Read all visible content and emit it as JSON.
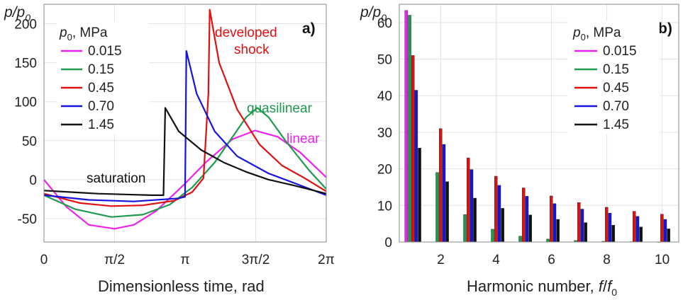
{
  "colors": {
    "0.015": "#ee22ee",
    "0.15": "#1e9a4e",
    "0.45": "#e01010",
    "0.70": "#1515dd",
    "1.45": "#111111"
  },
  "chart_data": [
    {
      "type": "line",
      "panel_label": "a)",
      "ylabel_html": "p/p0",
      "xlabel": "Dimensionless time, rad",
      "x_unit": "rad",
      "xlim": [
        0,
        6.2832
      ],
      "ylim": [
        -80,
        225
      ],
      "yticks": [
        -50,
        0,
        50,
        100,
        150,
        200
      ],
      "xtick_labels": [
        "0",
        "π/2",
        "π",
        "3π/2",
        "2π"
      ],
      "xtick_values": [
        0,
        1.5708,
        3.1416,
        4.7124,
        6.2832
      ],
      "legend_title": "p0, MPa",
      "legend_position": "top-left",
      "annotations": [
        {
          "text": "developed",
          "color": "#e01010"
        },
        {
          "text": "shock",
          "color": "#e01010"
        },
        {
          "text": "quasilinear",
          "color": "#1e9a4e"
        },
        {
          "text": "linear",
          "color": "#ee22ee"
        },
        {
          "text": "saturation",
          "color": "#111111"
        }
      ],
      "series": [
        {
          "name": "0.015",
          "color": "#ee22ee",
          "x": [
            0,
            0.5,
            1.0,
            1.5708,
            2.0,
            2.5,
            3.1416,
            3.6,
            4.2,
            4.7,
            5.2,
            5.7,
            6.2832
          ],
          "y": [
            0,
            -35,
            -58,
            -63,
            -58,
            -40,
            -5,
            22,
            52,
            63,
            55,
            35,
            3
          ]
        },
        {
          "name": "0.15",
          "color": "#1e9a4e",
          "x": [
            0,
            0.7,
            1.5,
            2.2,
            2.8,
            3.3,
            3.8,
            4.2,
            4.5,
            4.75,
            5.0,
            5.4,
            5.9,
            6.2832
          ],
          "y": [
            -20,
            -38,
            -48,
            -45,
            -32,
            -10,
            22,
            55,
            80,
            92,
            80,
            48,
            12,
            -12
          ]
        },
        {
          "name": "0.45",
          "color": "#e01010",
          "x": [
            0,
            0.8,
            1.5,
            2.2,
            2.9,
            3.3,
            3.55,
            3.66,
            3.69,
            3.9,
            4.3,
            4.8,
            5.3,
            5.8,
            6.2832
          ],
          "y": [
            -18,
            -30,
            -34,
            -33,
            -27,
            -16,
            2,
            110,
            218,
            150,
            90,
            45,
            18,
            2,
            -15
          ]
        },
        {
          "name": "0.70",
          "color": "#1515dd",
          "x": [
            0,
            1.0,
            2.0,
            3.0,
            3.14,
            3.17,
            3.4,
            3.8,
            4.3,
            5.0,
            5.6,
            6.2832
          ],
          "y": [
            -20,
            -26,
            -28,
            -24,
            -22,
            165,
            110,
            62,
            30,
            8,
            -5,
            -20
          ]
        },
        {
          "name": "1.45",
          "color": "#111111",
          "x": [
            0,
            0.6,
            1.2,
            1.8,
            2.4,
            2.66,
            2.7,
            3.0,
            3.5,
            4.0,
            4.5,
            5.0,
            5.6,
            6.2832
          ],
          "y": [
            -14,
            -16,
            -18,
            -19,
            -20,
            -20,
            92,
            62,
            38,
            22,
            10,
            0,
            -8,
            -18
          ]
        }
      ]
    },
    {
      "type": "bar",
      "panel_label": "b)",
      "ylabel_html": "p/p0",
      "xlabel": "Harmonic number, f/f0",
      "ylim": [
        0,
        65
      ],
      "yticks": [
        0,
        10,
        20,
        30,
        40,
        50,
        60
      ],
      "xticks": [
        2,
        4,
        6,
        8,
        10
      ],
      "categories": [
        1,
        2,
        3,
        4,
        5,
        6,
        7,
        8,
        9,
        10
      ],
      "legend_title": "p0, MPa",
      "legend_position": "top-right",
      "series": [
        {
          "name": "0.015",
          "color": "#ee22ee",
          "values": [
            63.3,
            0,
            0,
            0,
            0,
            0,
            0,
            0,
            0,
            0
          ]
        },
        {
          "name": "0.15",
          "color": "#1e9a4e",
          "values": [
            62,
            19,
            7.5,
            3.5,
            1.6,
            0.8,
            0.4,
            0.2,
            0.1,
            0.05
          ]
        },
        {
          "name": "0.45",
          "color": "#e01010",
          "values": [
            51,
            31,
            23,
            18,
            14.8,
            12.6,
            10.8,
            9.5,
            8.4,
            7.6
          ]
        },
        {
          "name": "0.70",
          "color": "#1515dd",
          "values": [
            41.5,
            26.7,
            19.8,
            15.5,
            12.5,
            10.5,
            9,
            7.9,
            7,
            6.2
          ]
        },
        {
          "name": "1.45",
          "color": "#111111",
          "values": [
            25.7,
            16.5,
            12,
            9.2,
            7.4,
            6.2,
            5.3,
            4.6,
            4.1,
            3.6
          ]
        }
      ]
    }
  ]
}
